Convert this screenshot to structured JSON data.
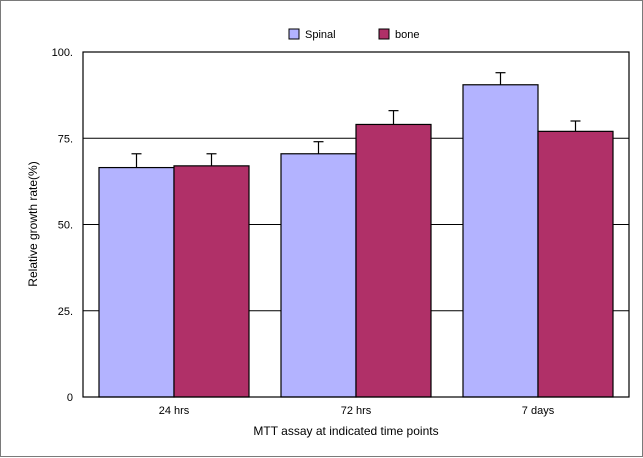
{
  "chart_data": {
    "type": "bar",
    "title": "",
    "xlabel": "MTT assay at indicated time points",
    "ylabel": "Relative growth rate(%)",
    "ylim": [
      0,
      100
    ],
    "yticks": [
      0,
      25,
      50,
      75,
      100
    ],
    "ytick_labels": [
      "0",
      "25.",
      "50.",
      "75.",
      "100."
    ],
    "categories": [
      "24 hrs",
      "72 hrs",
      "7 days"
    ],
    "series": [
      {
        "name": "Spinal",
        "values": [
          66.5,
          70.5,
          90.5
        ],
        "errors": [
          4,
          3.5,
          3.5
        ],
        "color": "#b3b3ff"
      },
      {
        "name": "bone",
        "values": [
          67,
          79,
          77
        ],
        "errors": [
          3.5,
          4,
          3
        ],
        "color": "#b03068"
      }
    ],
    "gridlines": true,
    "legend": "top-center"
  }
}
